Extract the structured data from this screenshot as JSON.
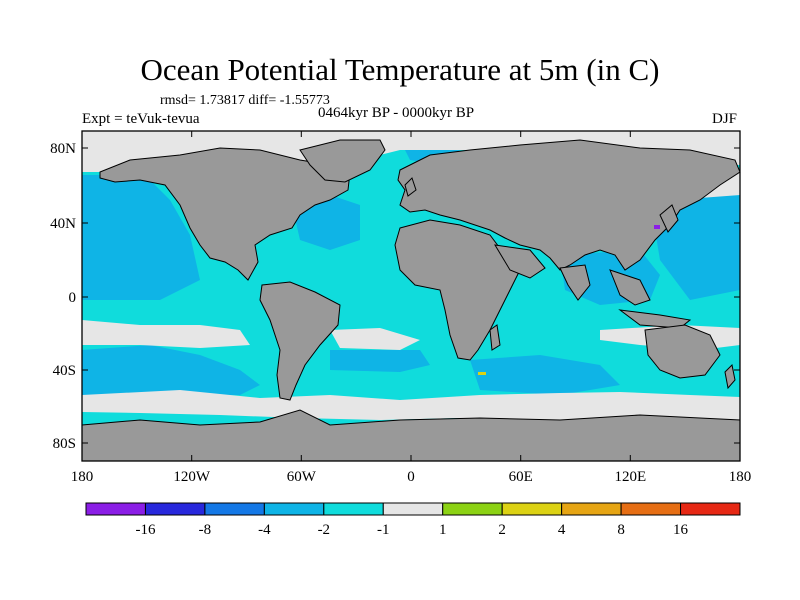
{
  "title": "Ocean Potential Temperature at 5m (in C)",
  "stats": "rmsd= 1.73817 diff= -1.55773",
  "experiment": "Expt = teVuk-tevua",
  "period": "0464kyr BP - 0000kyr BP",
  "season": "DJF",
  "lat_labels": [
    "80N",
    "40N",
    "0",
    "40S",
    "80S"
  ],
  "lon_labels": [
    "180",
    "120W",
    "60W",
    "0",
    "60E",
    "120E",
    "180"
  ],
  "colorbar": {
    "colors": [
      "#8b1ee6",
      "#2828dc",
      "#1478e6",
      "#0fb4e6",
      "#10dcdc",
      "#e6e6e6",
      "#8cd214",
      "#dcd214",
      "#e6a514",
      "#e66e14",
      "#e62814"
    ],
    "labels": [
      "-16",
      "-8",
      "-4",
      "-2",
      "-1",
      "1",
      "2",
      "4",
      "8",
      "16"
    ]
  },
  "colors": {
    "land": "#999999",
    "ocean_dominant": "#10dcdc",
    "frame": "#000000"
  }
}
